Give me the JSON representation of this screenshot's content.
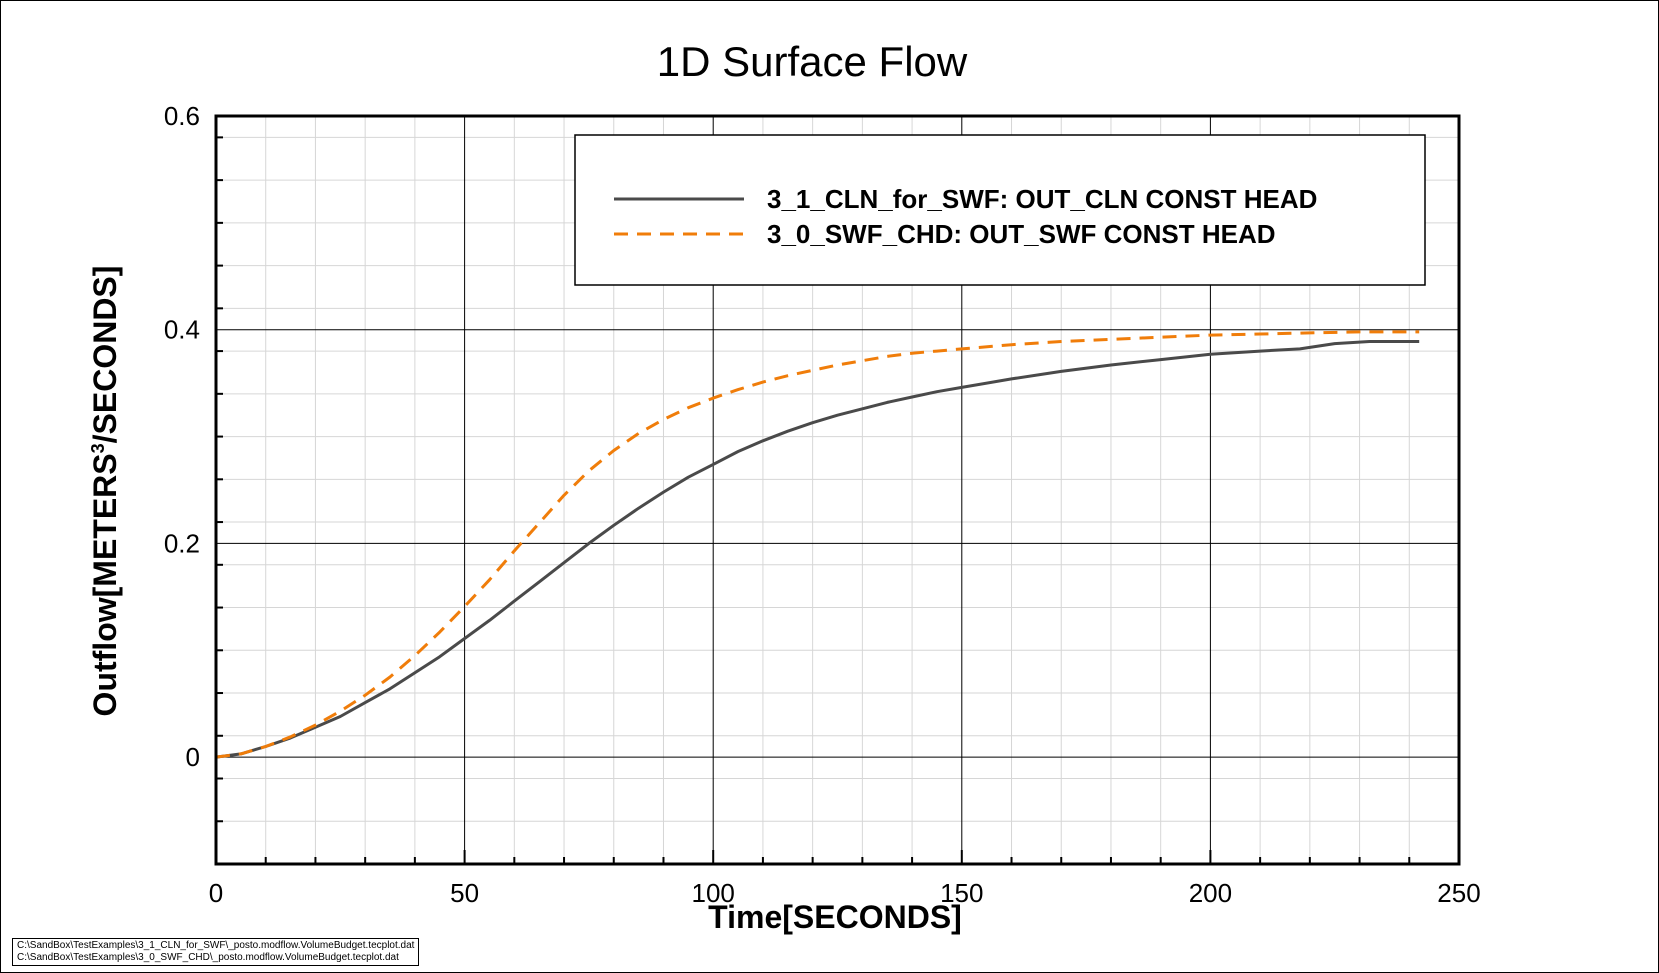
{
  "chart_data": {
    "type": "line",
    "title": "1D Surface Flow",
    "xlabel": "Time[SECONDS]",
    "ylabel_main": "Outflow[METERS",
    "ylabel_sup": "3",
    "ylabel_tail": "/SECONDS]",
    "xlim": [
      0,
      250
    ],
    "ylim": [
      -0.1,
      0.6
    ],
    "xticks": [
      "0",
      "50",
      "100",
      "150",
      "200",
      "250"
    ],
    "yticks": [
      "0",
      "0.2",
      "0.4",
      "0.6"
    ],
    "grid": true,
    "legend_position": "top-right",
    "series": [
      {
        "name": "3_1_CLN_for_SWF: OUT_CLN CONST HEAD",
        "color": "#4a4a4a",
        "style": "solid",
        "x": [
          0,
          5,
          10,
          15,
          20,
          25,
          30,
          35,
          40,
          45,
          50,
          55,
          60,
          65,
          70,
          75,
          80,
          85,
          90,
          95,
          100,
          105,
          110,
          115,
          120,
          125,
          130,
          135,
          140,
          145,
          150,
          160,
          170,
          180,
          190,
          200,
          210,
          218,
          225,
          232,
          242
        ],
        "y": [
          0,
          0.003,
          0.01,
          0.018,
          0.028,
          0.038,
          0.051,
          0.064,
          0.079,
          0.094,
          0.111,
          0.128,
          0.146,
          0.164,
          0.182,
          0.2,
          0.217,
          0.233,
          0.248,
          0.262,
          0.274,
          0.286,
          0.296,
          0.305,
          0.313,
          0.32,
          0.326,
          0.332,
          0.337,
          0.342,
          0.346,
          0.354,
          0.361,
          0.367,
          0.372,
          0.377,
          0.38,
          0.382,
          0.387,
          0.389,
          0.389
        ]
      },
      {
        "name": "3_0_SWF_CHD: OUT_SWF CONST HEAD",
        "color": "#f07d0a",
        "style": "dashed",
        "x": [
          0,
          5,
          10,
          15,
          20,
          25,
          30,
          35,
          40,
          45,
          50,
          55,
          60,
          65,
          70,
          75,
          80,
          85,
          90,
          95,
          100,
          105,
          110,
          115,
          120,
          125,
          130,
          135,
          140,
          145,
          150,
          160,
          170,
          180,
          190,
          200,
          210,
          220,
          230,
          242
        ],
        "y": [
          0,
          0.003,
          0.01,
          0.019,
          0.03,
          0.043,
          0.058,
          0.075,
          0.095,
          0.117,
          0.141,
          0.166,
          0.193,
          0.219,
          0.245,
          0.268,
          0.287,
          0.303,
          0.316,
          0.327,
          0.336,
          0.344,
          0.351,
          0.357,
          0.362,
          0.367,
          0.371,
          0.375,
          0.378,
          0.38,
          0.382,
          0.386,
          0.389,
          0.391,
          0.393,
          0.395,
          0.396,
          0.397,
          0.398,
          0.398
        ]
      }
    ]
  },
  "source_files": [
    "C:\\SandBox\\TestExamples\\3_1_CLN_for_SWF\\_posto.modflow.VolumeBudget.tecplot.dat",
    "C:\\SandBox\\TestExamples\\3_0_SWF_CHD\\_posto.modflow.VolumeBudget.tecplot.dat"
  ]
}
